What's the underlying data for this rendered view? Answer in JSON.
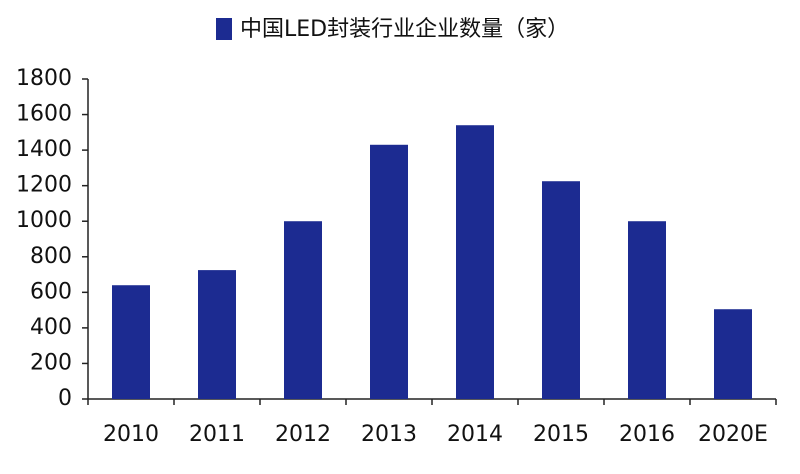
{
  "chart_data": {
    "type": "bar",
    "categories": [
      "2010",
      "2011",
      "2012",
      "2013",
      "2014",
      "2015",
      "2016",
      "2020E"
    ],
    "series": [
      {
        "name": "中国LED封装行业企业数量（家）",
        "color": "#1c2b91",
        "values": [
          640,
          725,
          1000,
          1430,
          1540,
          1225,
          1000,
          505
        ]
      }
    ],
    "ylim": [
      0,
      1800
    ],
    "yticks": [
      0,
      200,
      400,
      600,
      800,
      1000,
      1200,
      1400,
      1600,
      1800
    ]
  }
}
